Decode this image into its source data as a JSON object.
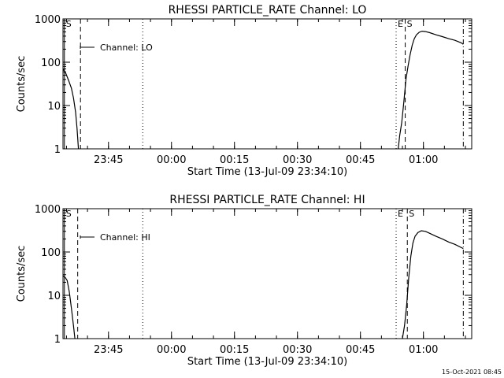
{
  "page": {
    "footer_stamp": "15-Oct-2021 08:45",
    "background": "#ffffff",
    "ink": "#000000"
  },
  "chart_data": [
    {
      "type": "line",
      "title": "RHESSI PARTICLE_RATE Channel: LO",
      "xlabel": "Start Time (13-Jul-09 23:34:10)",
      "ylabel": "Counts/sec",
      "yscale": "log",
      "ylim": [
        1,
        1000
      ],
      "xlim": [
        "23:34:10",
        "01:11:30"
      ],
      "x_ticks": [
        "23:45",
        "00:00",
        "00:15",
        "00:30",
        "00:45",
        "01:00"
      ],
      "y_ticks": [
        "1",
        "10",
        "100",
        "1000"
      ],
      "legend": {
        "label": "Channel: LO",
        "position": "top-left"
      },
      "markers": [
        {
          "label": "S",
          "time": "23:34:30",
          "style": "solid"
        },
        {
          "label": "",
          "time": "23:38:20",
          "style": "dashed"
        },
        {
          "label": "",
          "time": "23:53:10",
          "style": "dotted"
        },
        {
          "label": "E",
          "time": "00:53:30",
          "style": "dotted"
        },
        {
          "label": "S",
          "time": "00:55:40",
          "style": "dashed"
        },
        {
          "label": "",
          "time": "01:09:30",
          "style": "dashdot"
        }
      ],
      "series": [
        {
          "name": "Channel: LO",
          "segments": [
            [
              [
                "23:34:10",
                70
              ],
              [
                "23:34:50",
                55
              ],
              [
                "23:35:30",
                38
              ],
              [
                "23:36:10",
                25
              ],
              [
                "23:36:40",
                15
              ],
              [
                "23:37:10",
                7
              ],
              [
                "23:37:30",
                3
              ],
              [
                "23:37:50",
                1
              ]
            ],
            [
              [
                "00:54:00",
                1
              ],
              [
                "00:54:20",
                2
              ],
              [
                "00:54:50",
                4
              ],
              [
                "00:55:20",
                12
              ],
              [
                "00:55:50",
                40
              ],
              [
                "00:56:20",
                80
              ],
              [
                "00:56:50",
                150
              ],
              [
                "00:57:20",
                250
              ],
              [
                "00:57:50",
                350
              ],
              [
                "00:58:20",
                430
              ],
              [
                "00:59:00",
                490
              ],
              [
                "00:59:40",
                520
              ],
              [
                "01:00:30",
                510
              ],
              [
                "01:01:30",
                480
              ],
              [
                "01:03:00",
                430
              ],
              [
                "01:04:30",
                390
              ],
              [
                "01:06:00",
                350
              ],
              [
                "01:07:30",
                320
              ],
              [
                "01:09:00",
                280
              ],
              [
                "01:09:30",
                260
              ]
            ]
          ]
        }
      ]
    },
    {
      "type": "line",
      "title": "RHESSI PARTICLE_RATE Channel: HI",
      "xlabel": "Start Time (13-Jul-09 23:34:10)",
      "ylabel": "Counts/sec",
      "yscale": "log",
      "ylim": [
        1,
        1000
      ],
      "xlim": [
        "23:34:10",
        "01:11:30"
      ],
      "x_ticks": [
        "23:45",
        "00:00",
        "00:15",
        "00:30",
        "00:45",
        "01:00"
      ],
      "y_ticks": [
        "1",
        "10",
        "100",
        "1000"
      ],
      "legend": {
        "label": "Channel: HI",
        "position": "top-left"
      },
      "markers": [
        {
          "label": "S",
          "time": "23:34:30",
          "style": "solid"
        },
        {
          "label": "",
          "time": "23:37:40",
          "style": "dashed"
        },
        {
          "label": "",
          "time": "23:53:10",
          "style": "dotted"
        },
        {
          "label": "E",
          "time": "00:53:30",
          "style": "dotted"
        },
        {
          "label": "S",
          "time": "00:56:10",
          "style": "dashed"
        },
        {
          "label": "",
          "time": "01:09:30",
          "style": "dashdot"
        }
      ],
      "series": [
        {
          "name": "Channel: HI",
          "segments": [
            [
              [
                "23:34:10",
                28
              ],
              [
                "23:34:40",
                26
              ],
              [
                "23:35:10",
                22
              ],
              [
                "23:35:40",
                12
              ],
              [
                "23:36:10",
                5
              ],
              [
                "23:36:40",
                2
              ],
              [
                "23:37:00",
                1
              ]
            ],
            [
              [
                "00:55:00",
                1
              ],
              [
                "00:55:30",
                2
              ],
              [
                "00:56:00",
                6
              ],
              [
                "00:56:30",
                25
              ],
              [
                "00:57:00",
                80
              ],
              [
                "00:57:30",
                160
              ],
              [
                "00:58:00",
                230
              ],
              [
                "00:58:40",
                280
              ],
              [
                "00:59:30",
                310
              ],
              [
                "01:00:30",
                300
              ],
              [
                "01:01:30",
                270
              ],
              [
                "01:03:00",
                230
              ],
              [
                "01:04:30",
                200
              ],
              [
                "01:06:00",
                170
              ],
              [
                "01:07:30",
                150
              ],
              [
                "01:09:30",
                120
              ]
            ]
          ]
        }
      ]
    }
  ]
}
